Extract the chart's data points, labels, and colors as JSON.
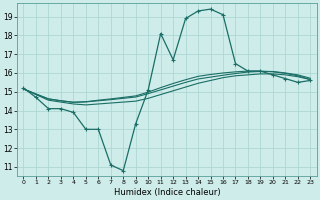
{
  "xlabel": "Humidex (Indice chaleur)",
  "ylabel": "",
  "bg_color": "#ceecea",
  "grid_color": "#add8d4",
  "line_color": "#1a6e66",
  "x_ticks": [
    0,
    1,
    2,
    3,
    4,
    5,
    6,
    7,
    8,
    9,
    10,
    11,
    12,
    13,
    14,
    15,
    16,
    17,
    18,
    19,
    20,
    21,
    22,
    23
  ],
  "y_ticks": [
    11,
    12,
    13,
    14,
    15,
    16,
    17,
    18,
    19
  ],
  "ylim": [
    10.5,
    19.7
  ],
  "xlim": [
    -0.5,
    23.5
  ],
  "series": [
    {
      "x": [
        0,
        1,
        2,
        3,
        4,
        5,
        6,
        7,
        8,
        9,
        10,
        11,
        12,
        13,
        14,
        15,
        16,
        17,
        18,
        19,
        20,
        21,
        22,
        23
      ],
      "y": [
        15.2,
        14.7,
        14.1,
        14.1,
        13.9,
        13.0,
        13.0,
        11.1,
        10.8,
        13.3,
        15.1,
        18.1,
        16.7,
        18.9,
        19.3,
        19.4,
        19.1,
        16.5,
        16.1,
        16.1,
        15.9,
        15.7,
        15.5,
        15.6
      ],
      "marker": true
    },
    {
      "x": [
        0,
        1,
        2,
        3,
        4,
        5,
        6,
        7,
        8,
        9,
        10,
        11,
        12,
        13,
        14,
        15,
        16,
        17,
        18,
        19,
        20,
        21,
        22,
        23
      ],
      "y": [
        15.15,
        14.85,
        14.55,
        14.45,
        14.35,
        14.3,
        14.35,
        14.4,
        14.45,
        14.5,
        14.65,
        14.85,
        15.05,
        15.25,
        15.45,
        15.6,
        15.75,
        15.85,
        15.9,
        15.95,
        15.95,
        15.9,
        15.8,
        15.65
      ],
      "marker": false
    },
    {
      "x": [
        0,
        1,
        2,
        3,
        4,
        5,
        6,
        7,
        8,
        9,
        10,
        11,
        12,
        13,
        14,
        15,
        16,
        17,
        18,
        19,
        20,
        21,
        22,
        23
      ],
      "y": [
        15.15,
        14.88,
        14.62,
        14.52,
        14.44,
        14.46,
        14.52,
        14.58,
        14.65,
        14.72,
        14.9,
        15.1,
        15.3,
        15.5,
        15.68,
        15.78,
        15.88,
        15.97,
        16.05,
        16.08,
        16.08,
        16.0,
        15.9,
        15.72
      ],
      "marker": false
    },
    {
      "x": [
        0,
        1,
        2,
        3,
        4,
        5,
        6,
        7,
        8,
        9,
        10,
        11,
        12,
        13,
        14,
        15,
        16,
        17,
        18,
        19,
        20,
        21,
        22,
        23
      ],
      "y": [
        15.15,
        14.88,
        14.62,
        14.52,
        14.44,
        14.47,
        14.55,
        14.62,
        14.7,
        14.78,
        14.98,
        15.22,
        15.44,
        15.64,
        15.82,
        15.92,
        16.0,
        16.06,
        16.1,
        16.1,
        16.06,
        15.98,
        15.85,
        15.65
      ],
      "marker": false
    }
  ]
}
